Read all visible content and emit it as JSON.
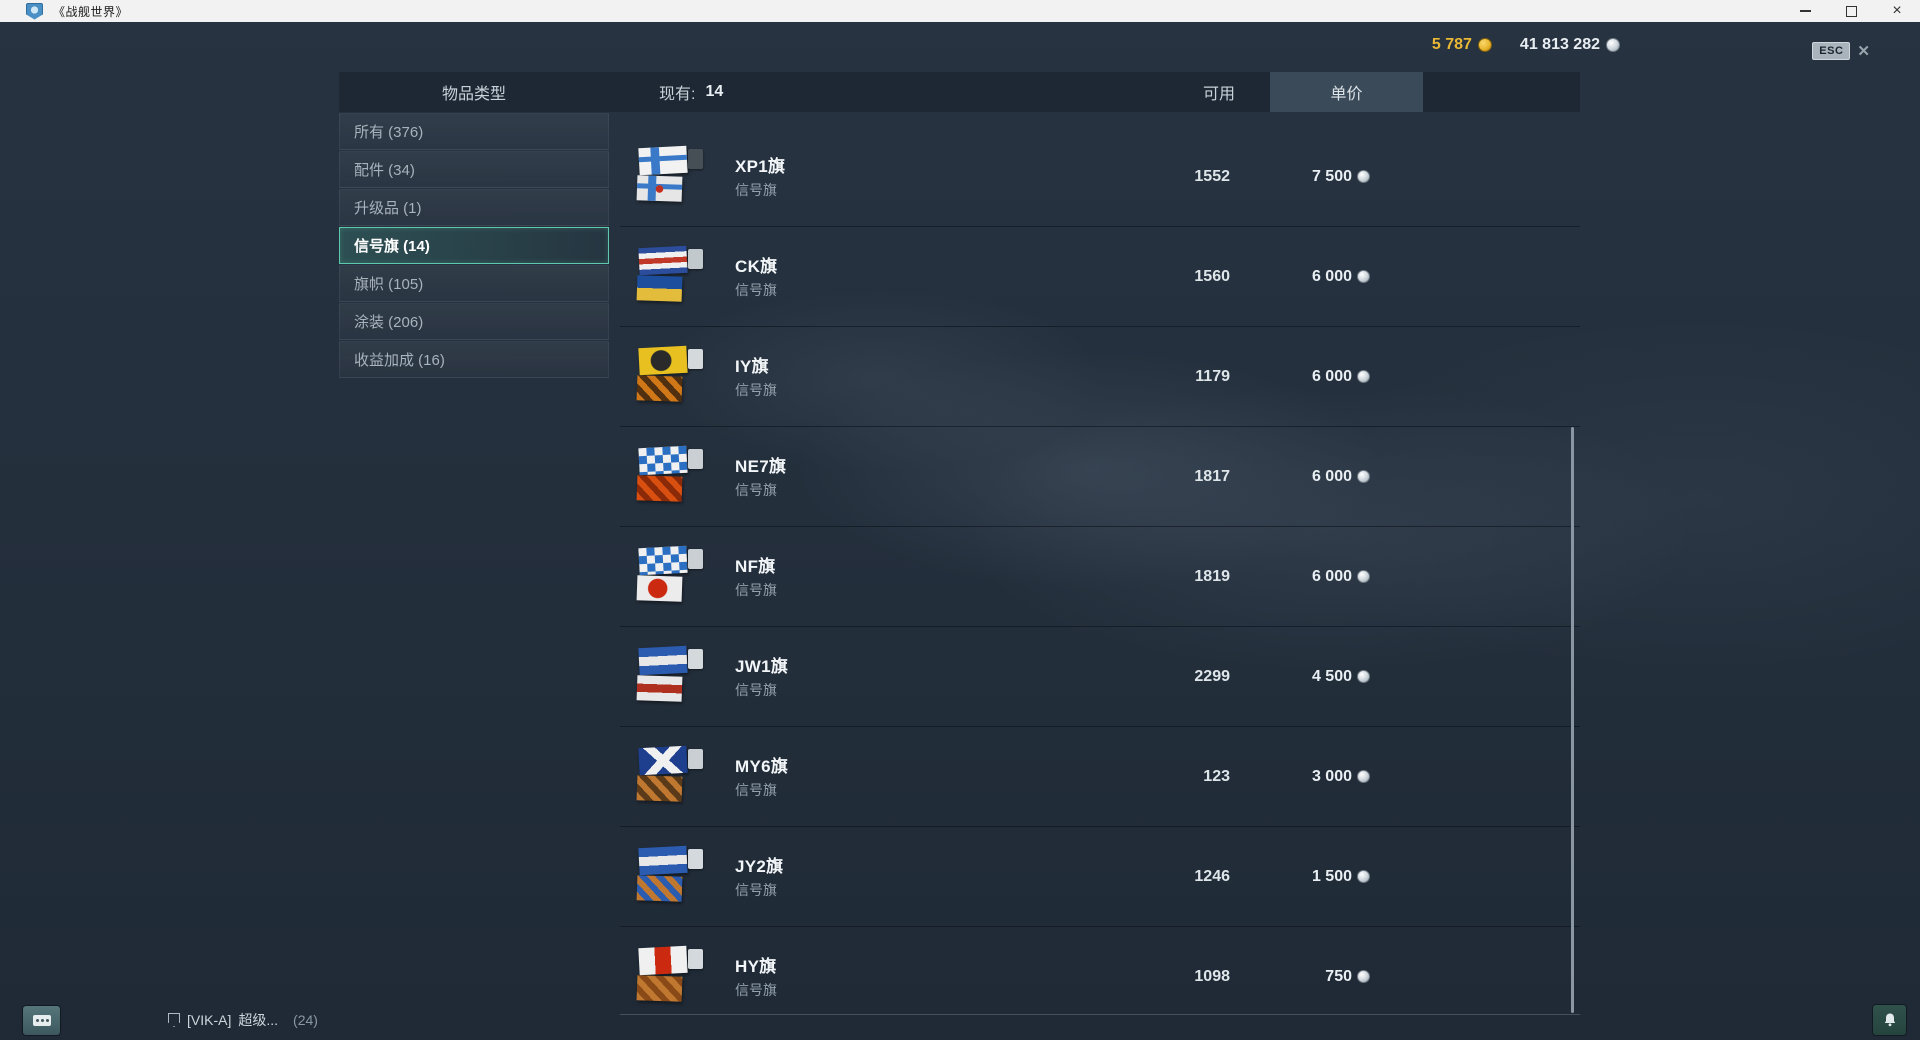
{
  "window": {
    "title": "《战舰世界》",
    "app_icon": "wows-shield-icon"
  },
  "topbar": {
    "gold_amount": "5 787",
    "credits_amount": "41 813 282",
    "esc_label": "ESC"
  },
  "header": {
    "col_type": "物品类型",
    "col_have_label": "现有:",
    "col_have_value": "14",
    "col_available": "可用",
    "col_price": "单价"
  },
  "sidebar": {
    "items": [
      {
        "label": "所有",
        "count": "376",
        "selected": false
      },
      {
        "label": "配件",
        "count": "34",
        "selected": false
      },
      {
        "label": "升级品",
        "count": "1",
        "selected": false
      },
      {
        "label": "信号旗",
        "count": "14",
        "selected": true
      },
      {
        "label": "旗帜",
        "count": "105",
        "selected": false
      },
      {
        "label": "涂装",
        "count": "206",
        "selected": false
      },
      {
        "label": "收益加成",
        "count": "16",
        "selected": false
      }
    ]
  },
  "items": [
    {
      "name": "XP1旗",
      "subtitle": "信号旗",
      "qty": "1552",
      "price": "7 500",
      "flag": {
        "top": [
          "cross",
          "#f2f2f2",
          "#3a79c8"
        ],
        "bottom": [
          "cross-dot",
          "#e6e6e6",
          "#3a79c8",
          "#c03020"
        ],
        "badge": "camo-badge",
        "badge_color": "#4a5258"
      }
    },
    {
      "name": "CK旗",
      "subtitle": "信号旗",
      "qty": "1560",
      "price": "6 000",
      "flag": {
        "top": [
          "hstripes",
          "#2b4d9b",
          "#f0f0f0",
          "#c03828",
          "#f0f0f0",
          "#2b4d9b"
        ],
        "bottom": [
          "hstripes",
          "#1d4e9e",
          "#e2bc3a"
        ],
        "badge": "ship-badge",
        "badge_color": "#cfd6da"
      }
    },
    {
      "name": "IY旗",
      "subtitle": "信号旗",
      "qty": "1179",
      "price": "6 000",
      "flag": {
        "top": [
          "circle",
          "#e8c020",
          "#2a2a2a"
        ],
        "bottom": [
          "diag",
          "#d07818",
          "#503010"
        ],
        "badge": "extinguisher-badge",
        "badge_color": "#e3e8ea"
      }
    },
    {
      "name": "NE7旗",
      "subtitle": "信号旗",
      "qty": "1817",
      "price": "6 000",
      "flag": {
        "top": [
          "checker",
          "#2b6fc2",
          "#f0f0f0"
        ],
        "bottom": [
          "diag",
          "#d94f10",
          "#8a2a08"
        ],
        "badge": "propeller-badge",
        "badge_color": "#d8dde0"
      }
    },
    {
      "name": "NF旗",
      "subtitle": "信号旗",
      "qty": "1819",
      "price": "6 000",
      "flag": {
        "top": [
          "checker",
          "#2b6fc2",
          "#f0f0f0"
        ],
        "bottom": [
          "circle",
          "#ececec",
          "#cc2a10"
        ],
        "badge": "torpedo-badge",
        "badge_color": "#d8dde0"
      }
    },
    {
      "name": "JW1旗",
      "subtitle": "信号旗",
      "qty": "2299",
      "price": "4 500",
      "flag": {
        "top": [
          "hstripes",
          "#2b5cb0",
          "#e8e8e8",
          "#2b5cb0"
        ],
        "bottom": [
          "hstripes",
          "#e8e8e8",
          "#b03020",
          "#e8e8e8"
        ],
        "badge": "triangle-badge",
        "badge_color": "#e3e8ea"
      }
    },
    {
      "name": "MY6旗",
      "subtitle": "信号旗",
      "qty": "123",
      "price": "3 000",
      "flag": {
        "top": [
          "saltire",
          "#1d3f8e",
          "#f0f0f0"
        ],
        "bottom": [
          "diag",
          "#c07830",
          "#5a3a18"
        ],
        "badge": "globe-badge",
        "badge_color": "#d8dde0"
      }
    },
    {
      "name": "JY2旗",
      "subtitle": "信号旗",
      "qty": "1246",
      "price": "1 500",
      "flag": {
        "top": [
          "hstripes",
          "#2b5cb0",
          "#e8e8e8",
          "#2b5cb0"
        ],
        "bottom": [
          "diag",
          "#c07830",
          "#2b5cb0"
        ],
        "badge": "wrench-badge",
        "badge_color": "#e3e8ea"
      }
    },
    {
      "name": "HY旗",
      "subtitle": "信号旗",
      "qty": "1098",
      "price": "750",
      "flag": {
        "top": [
          "vstripes",
          "#f0f0f0",
          "#cc2a10",
          "#f0f0f0"
        ],
        "bottom": [
          "diag",
          "#c07830",
          "#8a4a18"
        ],
        "badge": "ribbon-badge",
        "badge_color": "#e3e8ea"
      }
    }
  ],
  "bottombar": {
    "clan_tag": "[VIK-A]",
    "player_name": "超级...",
    "count": "(24)"
  },
  "colors": {
    "gold": "#e9b835",
    "selected_accent": "#5ec9ad",
    "header_bg": "#1d2834",
    "price_tab_bg": "#3a4a58"
  }
}
